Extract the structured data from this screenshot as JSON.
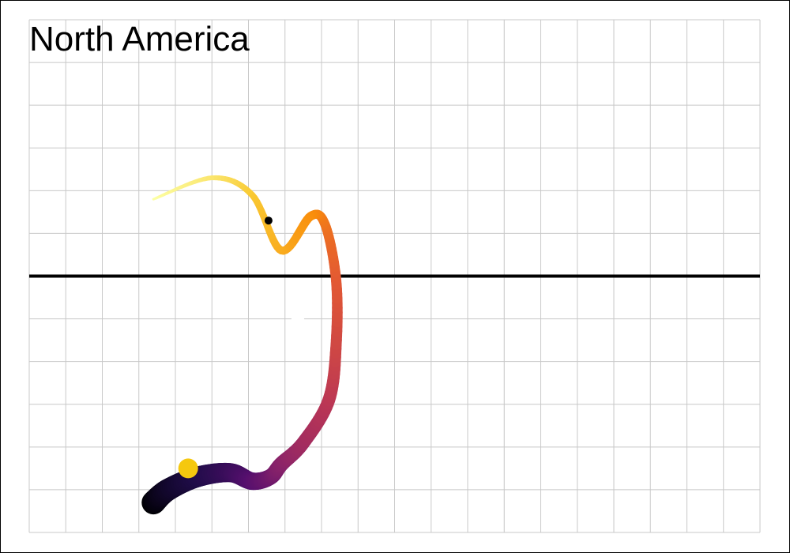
{
  "chart_data": {
    "type": "line",
    "title": "North America",
    "xlabel": "",
    "ylabel": "",
    "grid": true,
    "xlim": [
      0,
      20
    ],
    "ylim": [
      -6,
      6
    ],
    "baseline_y": 0,
    "series": [
      {
        "x": [
          3.4,
          3.8,
          4.6,
          5.5,
          6.1,
          6.6,
          6.9,
          7.5,
          8.2,
          8.4,
          8.4,
          8.1,
          7.7,
          6.9,
          6.1,
          5.0,
          3.4
        ],
        "y": [
          -5.3,
          -5.0,
          -4.7,
          -4.6,
          -4.8,
          -4.7,
          -4.4,
          -3.9,
          -2.9,
          -1.6,
          -0.1,
          1.2,
          1.4,
          0.6,
          1.9,
          2.3,
          1.8
        ],
        "stroke_width": [
          30,
          28,
          26,
          24,
          22,
          20,
          19,
          17,
          16,
          14,
          13,
          12,
          11,
          10,
          8,
          6,
          3
        ],
        "color_scale": "inferno"
      }
    ],
    "markers": [
      {
        "x": 4.35,
        "y": -4.5,
        "color": "#f5c80f"
      },
      {
        "x": 7.35,
        "y": -1.05,
        "color": "#ffffff"
      },
      {
        "x": 6.55,
        "y": 1.3,
        "color": "#000000"
      }
    ]
  }
}
